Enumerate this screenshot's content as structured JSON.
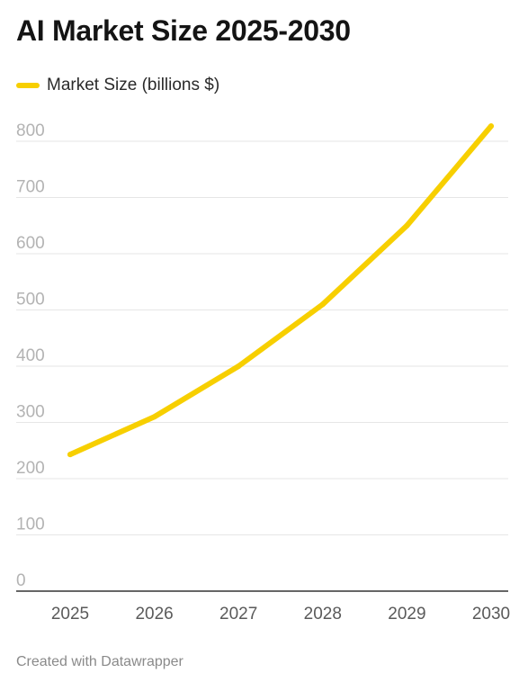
{
  "chart_data": {
    "type": "line",
    "title": "AI Market Size 2025-2030",
    "categories": [
      "2025",
      "2026",
      "2027",
      "2028",
      "2029",
      "2030"
    ],
    "series": [
      {
        "name": "Market Size (billions $)",
        "values": [
          243,
          310,
          400,
          510,
          650,
          827
        ],
        "color": "#f7cf00"
      }
    ],
    "xlabel": "",
    "ylabel": "",
    "ylim": [
      0,
      800
    ],
    "y_ticks": [
      0,
      100,
      200,
      300,
      400,
      500,
      600,
      700,
      800
    ],
    "grid": true,
    "legend_position": "top-left"
  },
  "legend": {
    "label": "Market Size (billions $)",
    "color": "#f7cf00"
  },
  "credit": "Created with Datawrapper"
}
